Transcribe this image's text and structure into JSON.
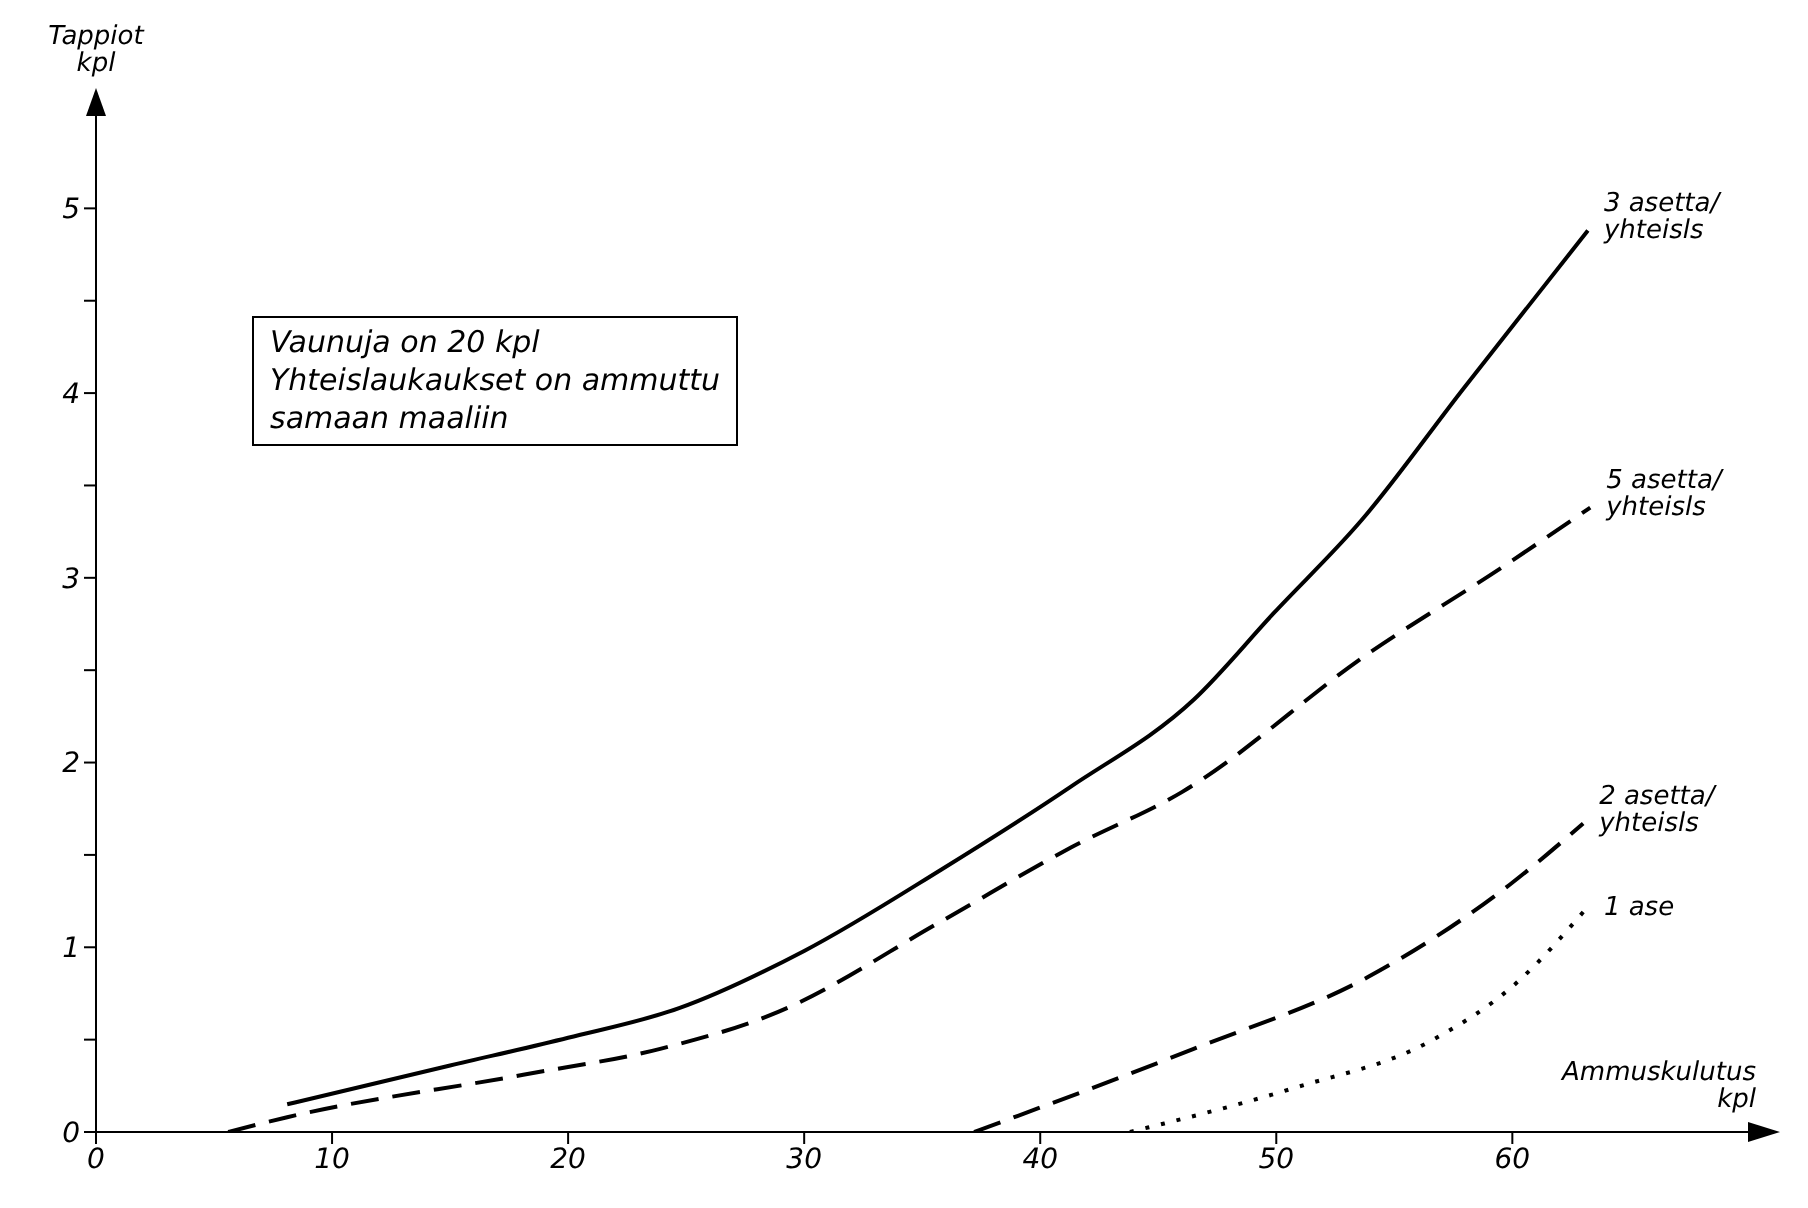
{
  "chart_data": {
    "type": "line",
    "xlabel": "Ammuskulutus\nkpl",
    "ylabel": "Tappiot\nkpl",
    "annotations": [
      "Vaunuja on 20 kpl\nYhteislaukaukset on ammuttu\nsamaan maaliin"
    ],
    "xlim": [
      0,
      71
    ],
    "xticks": [
      0,
      10,
      20,
      30,
      40,
      50,
      60
    ],
    "ylim": [
      0,
      5.5
    ],
    "yticks": [
      0,
      {
        "value": 0.5,
        "label": null
      },
      1,
      {
        "value": 1.5,
        "label": null
      },
      2,
      {
        "value": 2.5,
        "label": null
      },
      3,
      {
        "value": 3.5,
        "label": null
      },
      4,
      {
        "value": 4.5,
        "label": null
      },
      5
    ],
    "grid": false,
    "legend": false,
    "marker": "none",
    "series": [
      {
        "name": "3 asetta/\nyhteisls",
        "color": "#000000",
        "line_style": "solid",
        "x": [
          8.1,
          15,
          20,
          24.7,
          30,
          35.8,
          41.3,
          46.5,
          49.9,
          53.6,
          57.9,
          63.2
        ],
        "values": [
          0.15,
          0.36,
          0.51,
          0.67,
          0.98,
          1.42,
          1.87,
          2.34,
          2.81,
          3.31,
          4.02,
          4.88
        ]
      },
      {
        "name": "5 asetta/\nyhteisls",
        "color": "#000000",
        "line_style": "dashed",
        "x": [
          5.6,
          8.1,
          18.1,
          23.9,
          28.9,
          35.8,
          41.3,
          46,
          53.9,
          59.6,
          63.3
        ],
        "values": [
          0,
          0.08,
          0.31,
          0.45,
          0.65,
          1.14,
          1.54,
          1.84,
          2.59,
          3.06,
          3.38
        ]
      },
      {
        "name": "2 asetta/\nyhteisls",
        "color": "#000000",
        "line_style": "dashed",
        "x": [
          37.2,
          46.5,
          53.9,
          59.9,
          63
        ],
        "values": [
          0,
          0.45,
          0.84,
          1.34,
          1.67
        ]
      },
      {
        "name": "1 ase",
        "color": "#000000",
        "line_style": "dotted",
        "x": [
          43.8,
          50.8,
          56.5,
          60.2,
          63.2
        ],
        "values": [
          0,
          0.24,
          0.49,
          0.81,
          1.22
        ]
      }
    ]
  }
}
